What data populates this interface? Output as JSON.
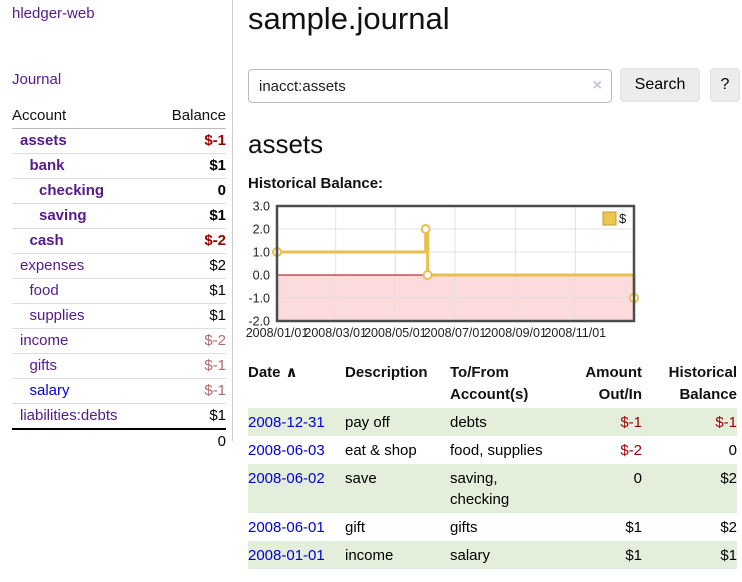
{
  "app": {
    "title": "hledger-web"
  },
  "sidebar": {
    "journal_link": "Journal",
    "accounts": {
      "header_account": "Account",
      "header_balance": "Balance",
      "rows": [
        {
          "name": "assets",
          "depth": 1,
          "bold": true,
          "link": "purple",
          "balance": "$-1",
          "balance_class": "neg"
        },
        {
          "name": "bank",
          "depth": 2,
          "bold": true,
          "link": "purple",
          "balance": "$1",
          "balance_class": "pos"
        },
        {
          "name": "checking",
          "depth": 3,
          "bold": true,
          "link": "purple",
          "balance": "0",
          "balance_class": "pos"
        },
        {
          "name": "saving",
          "depth": 3,
          "bold": true,
          "link": "purple",
          "balance": "$1",
          "balance_class": "pos"
        },
        {
          "name": "cash",
          "depth": 2,
          "bold": true,
          "link": "purple",
          "balance": "$-2",
          "balance_class": "neg"
        },
        {
          "name": "expenses",
          "depth": 1,
          "bold": false,
          "link": "purple",
          "balance": "$2",
          "balance_class": "pos"
        },
        {
          "name": "food",
          "depth": 2,
          "bold": false,
          "link": "purple",
          "balance": "$1",
          "balance_class": "pos"
        },
        {
          "name": "supplies",
          "depth": 2,
          "bold": false,
          "link": "purple",
          "balance": "$1",
          "balance_class": "pos"
        },
        {
          "name": "income",
          "depth": 1,
          "bold": false,
          "link": "purple",
          "balance": "$-2",
          "balance_class": "dimneg"
        },
        {
          "name": "gifts",
          "depth": 2,
          "bold": false,
          "link": "purple",
          "balance": "$-1",
          "balance_class": "dimneg"
        },
        {
          "name": "salary",
          "depth": 2,
          "bold": false,
          "link": "blue",
          "balance": "$-1",
          "balance_class": "dimneg"
        },
        {
          "name": "liabilities:debts",
          "depth": 1,
          "bold": false,
          "link": "purple",
          "balance": "$1",
          "balance_class": "pos"
        }
      ],
      "total": "0"
    }
  },
  "main": {
    "title": "sample.journal",
    "search": {
      "value": "inacct:assets",
      "clear_icon": "×",
      "button": "Search",
      "help": "?"
    },
    "account_heading": "assets",
    "chart_label": "Historical Balance:"
  },
  "chart_data": {
    "type": "line",
    "step": true,
    "legend": [
      "$"
    ],
    "ylim": [
      -2,
      3
    ],
    "y_ticks": [
      "3.0",
      "2.0",
      "1.0",
      "0.0",
      "-1.0",
      "-2.0"
    ],
    "x_ticks": [
      "2008/01/01",
      "2008/03/01",
      "2008/05/01",
      "2008/07/01",
      "2008/09/01",
      "2008/11/01"
    ],
    "x_range": [
      "2008-01-01",
      "2008-12-31"
    ],
    "points": [
      {
        "date": "2008-01-01",
        "value": 1
      },
      {
        "date": "2008-06-01",
        "value": 2
      },
      {
        "date": "2008-06-03",
        "value": 0
      },
      {
        "date": "2008-12-31",
        "value": -1
      }
    ],
    "colors": {
      "line": "#e9c04f",
      "marker_fill": "#ffffff",
      "negative_fill": "#fbdbdb",
      "zero_line": "#b00000",
      "grid": "#e2e2e2",
      "border": "#4d4d4d",
      "legend_fill": "#ecc74f",
      "legend_stroke": "#c09c2c"
    }
  },
  "table": {
    "headers": [
      {
        "lines": [
          "Date"
        ],
        "sort": "∧",
        "align": "al"
      },
      {
        "lines": [
          "Description"
        ],
        "align": "al"
      },
      {
        "lines": [
          "To/From",
          "Account(s)"
        ],
        "align": "al"
      },
      {
        "lines": [
          "Amount",
          "Out/In"
        ],
        "align": "ar"
      },
      {
        "lines": [
          "Historical",
          "Balance"
        ],
        "align": "ar"
      }
    ],
    "rows": [
      {
        "date": "2008-12-31",
        "description": "pay off",
        "accounts": "debts",
        "amount": "$-1",
        "amount_class": "neg",
        "balance": "$-1",
        "balance_class": "neg",
        "shaded": true
      },
      {
        "date": "2008-06-03",
        "description": "eat & shop",
        "accounts": "food, supplies",
        "amount": "$-2",
        "amount_class": "neg",
        "balance": "0",
        "balance_class": "pos",
        "shaded": false
      },
      {
        "date": "2008-06-02",
        "description": "save",
        "accounts": "saving, checking",
        "amount": "0",
        "amount_class": "pos",
        "balance": "$2",
        "balance_class": "pos",
        "shaded": true
      },
      {
        "date": "2008-06-01",
        "description": "gift",
        "accounts": "gifts",
        "amount": "$1",
        "amount_class": "pos",
        "balance": "$2",
        "balance_class": "pos",
        "shaded": false
      },
      {
        "date": "2008-01-01",
        "description": "income",
        "accounts": "salary",
        "amount": "$1",
        "amount_class": "pos",
        "balance": "$1",
        "balance_class": "pos",
        "shaded": true
      }
    ]
  }
}
